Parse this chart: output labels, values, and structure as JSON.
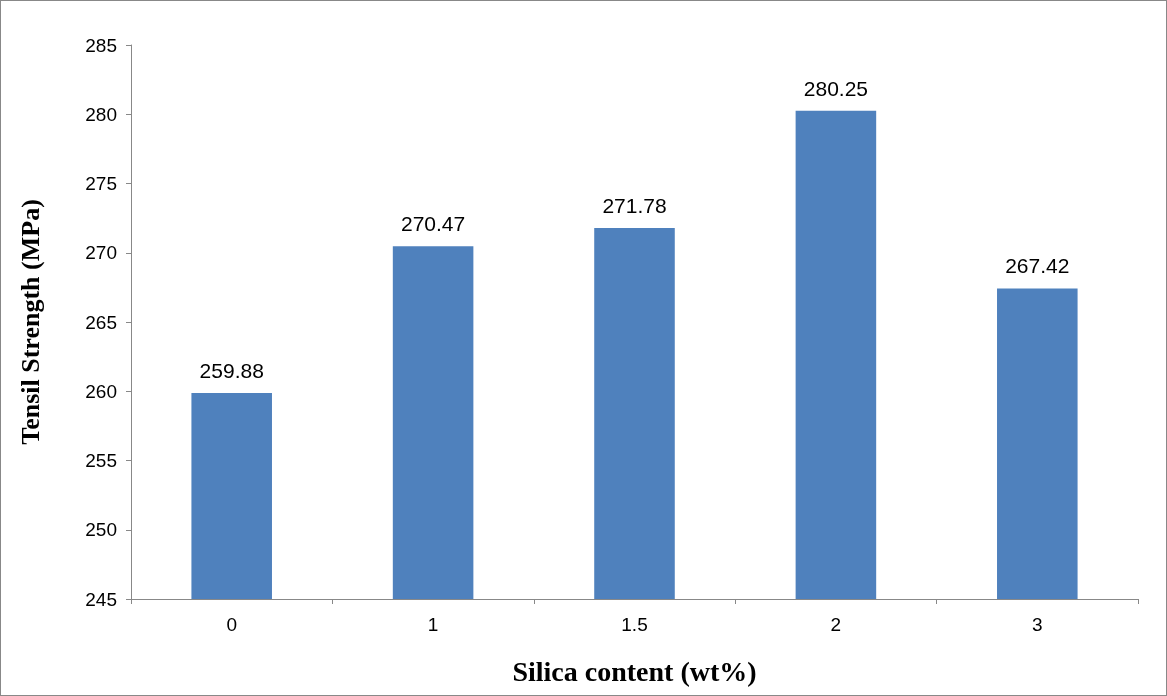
{
  "chart_data": {
    "type": "bar",
    "xlabel": "Silica content (wt%)",
    "ylabel": "Tensil Strength (MPa)",
    "categories": [
      "0",
      "1",
      "1.5",
      "2",
      "3"
    ],
    "values": [
      259.88,
      270.47,
      271.78,
      280.25,
      267.42
    ],
    "color": "#4f81bd",
    "ylim": [
      245,
      285
    ],
    "yticks": [
      245,
      250,
      255,
      260,
      265,
      270,
      275,
      280,
      285
    ],
    "data_labels": true,
    "grid": false
  }
}
